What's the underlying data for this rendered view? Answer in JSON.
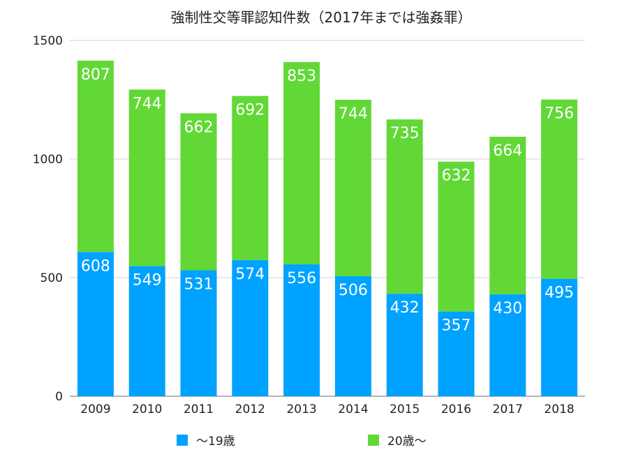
{
  "chart_data": {
    "type": "bar",
    "stacked": true,
    "title": "強制性交等罪認知件数（2017年までは強姦罪）",
    "xlabel": "",
    "ylabel": "",
    "categories": [
      "2009",
      "2010",
      "2011",
      "2012",
      "2013",
      "2014",
      "2015",
      "2016",
      "2017",
      "2018"
    ],
    "series": [
      {
        "name": "〜19歳",
        "color": "#00a2ff",
        "values": [
          608,
          549,
          531,
          574,
          556,
          506,
          432,
          357,
          430,
          495
        ]
      },
      {
        "name": "20歳〜",
        "color": "#61d836",
        "values": [
          807,
          744,
          662,
          692,
          853,
          744,
          735,
          632,
          664,
          756
        ]
      }
    ],
    "ylim": [
      0,
      1500
    ],
    "yticks": [
      0,
      500,
      1000,
      1500
    ],
    "grid": true,
    "legend": "bottom"
  }
}
